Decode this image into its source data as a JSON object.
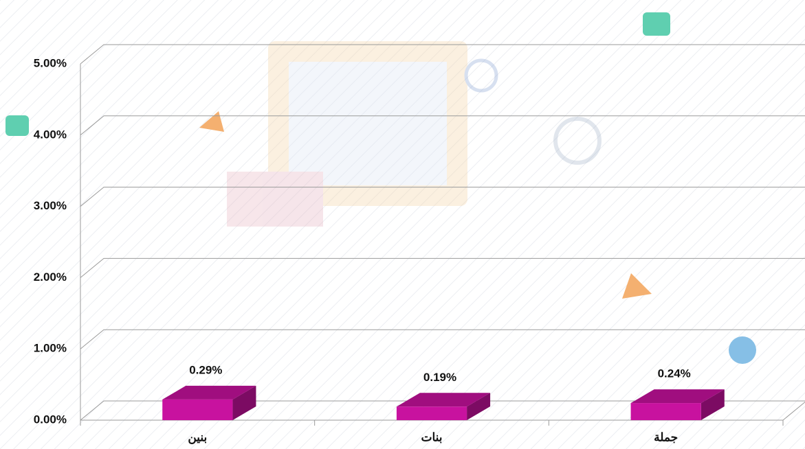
{
  "chart_data": {
    "type": "bar3d",
    "categories": [
      "بنين",
      "بنات",
      "جملة"
    ],
    "values": [
      0.29,
      0.19,
      0.24
    ],
    "value_labels": [
      "0.29%",
      "0.19%",
      "0.24%"
    ],
    "color": "#c8129f",
    "ylim": [
      0,
      5
    ],
    "yticks": [
      {
        "value": 0,
        "label": "0.00%"
      },
      {
        "value": 1,
        "label": "1.00%"
      },
      {
        "value": 2,
        "label": "2.00%"
      },
      {
        "value": 3,
        "label": "3.00%"
      },
      {
        "value": 4,
        "label": "4.00%"
      },
      {
        "value": 5,
        "label": "5.00%"
      }
    ],
    "grid": true
  }
}
